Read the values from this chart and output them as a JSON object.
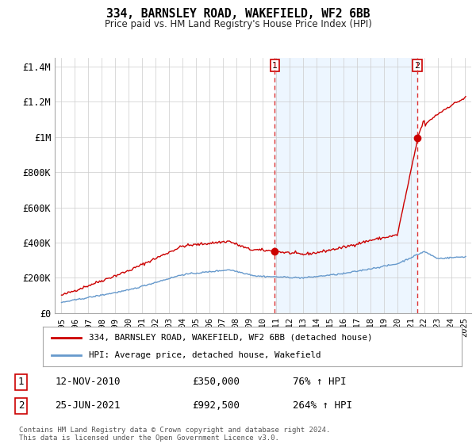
{
  "title": "334, BARNSLEY ROAD, WAKEFIELD, WF2 6BB",
  "subtitle": "Price paid vs. HM Land Registry's House Price Index (HPI)",
  "legend_line1": "334, BARNSLEY ROAD, WAKEFIELD, WF2 6BB (detached house)",
  "legend_line2": "HPI: Average price, detached house, Wakefield",
  "annotation1_label": "1",
  "annotation1_date": "12-NOV-2010",
  "annotation1_price": "£350,000",
  "annotation1_hpi": "76% ↑ HPI",
  "annotation2_label": "2",
  "annotation2_date": "25-JUN-2021",
  "annotation2_price": "£992,500",
  "annotation2_hpi": "264% ↑ HPI",
  "footnote": "Contains HM Land Registry data © Crown copyright and database right 2024.\nThis data is licensed under the Open Government Licence v3.0.",
  "sale1_x": 2010.87,
  "sale1_y": 350000,
  "sale2_x": 2021.48,
  "sale2_y": 992500,
  "red_color": "#cc0000",
  "blue_color": "#6699cc",
  "blue_fill_color": "#ddeeff",
  "dashed_color": "#dd3333",
  "bg_color": "#ffffff",
  "grid_color": "#cccccc",
  "ylim": [
    0,
    1450000
  ],
  "xlim": [
    1994.5,
    2025.5
  ],
  "yticks": [
    0,
    200000,
    400000,
    600000,
    800000,
    1000000,
    1200000,
    1400000
  ],
  "ytick_labels": [
    "£0",
    "£200K",
    "£400K",
    "£600K",
    "£800K",
    "£1M",
    "£1.2M",
    "£1.4M"
  ],
  "xticks": [
    1995,
    1996,
    1997,
    1998,
    1999,
    2000,
    2001,
    2002,
    2003,
    2004,
    2005,
    2006,
    2007,
    2008,
    2009,
    2010,
    2011,
    2012,
    2013,
    2014,
    2015,
    2016,
    2017,
    2018,
    2019,
    2020,
    2021,
    2022,
    2023,
    2024,
    2025
  ]
}
